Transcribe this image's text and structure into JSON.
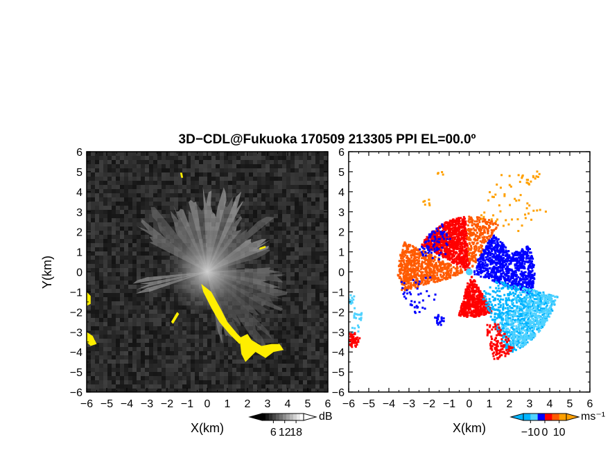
{
  "chart_data": {
    "type": "heatmap",
    "title": "3D−CDL@Fukuoka 170509 213305 PPI EL=00.0º",
    "panels": [
      {
        "name": "snr",
        "xlabel": "X(km)",
        "ylabel": "Y(km)",
        "xlim": [
          -6,
          6
        ],
        "ylim": [
          -6,
          6
        ],
        "x_ticks": [
          "−6",
          "−5",
          "−4",
          "−3",
          "−2",
          "−1",
          "0",
          "1",
          "2",
          "3",
          "4",
          "5",
          "6"
        ],
        "y_ticks": [
          "6",
          "5",
          "4",
          "3",
          "2",
          "1",
          "0",
          "−1",
          "−2",
          "−3",
          "−4",
          "−5",
          "−6"
        ],
        "background_color": "#2a2a2a",
        "highlight_color": "#ffee00",
        "colorbar": {
          "unit": "dB",
          "tick_labels": [
            "6",
            "12",
            "18"
          ],
          "tick_values": [
            6,
            12,
            18
          ],
          "range": [
            0,
            22
          ]
        }
      },
      {
        "name": "doppler-velocity",
        "xlabel": "X(km)",
        "xlim": [
          -6,
          6
        ],
        "ylim": [
          -6,
          6
        ],
        "x_ticks": [
          "−6",
          "−5",
          "−4",
          "−3",
          "−2",
          "−1",
          "0",
          "1",
          "2",
          "3",
          "4",
          "5",
          "6"
        ],
        "y_ticks": [
          "6",
          "5",
          "4",
          "3",
          "2",
          "1",
          "0",
          "−1",
          "−2",
          "−3",
          "−4",
          "−5",
          "−6"
        ],
        "colorbar": {
          "unit": "ms⁻¹",
          "tick_labels": [
            "−10",
            "0",
            "10"
          ],
          "tick_values": [
            -10,
            0,
            10
          ],
          "range": [
            -15,
            15
          ],
          "colors": [
            "#00b4ff",
            "#50d2ff",
            "#0000ff",
            "#ff0000",
            "#ff5a00",
            "#ffa000"
          ]
        }
      }
    ]
  }
}
